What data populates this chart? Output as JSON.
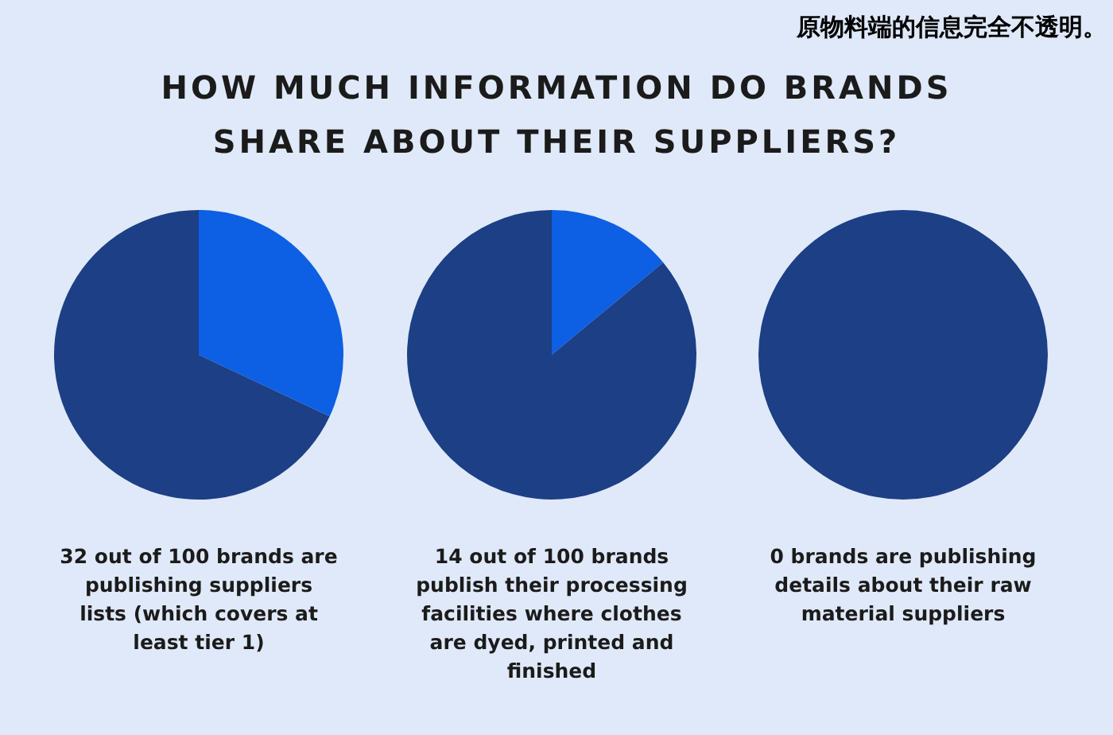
{
  "chart_data": [
    {
      "type": "pie",
      "title": "HOW MUCH INFORMATION DO BRANDS SHARE ABOUT THEIR SUPPLIERS?",
      "categories": [
        null,
        null
      ],
      "values": [
        32,
        68
      ],
      "colors": [
        "#0d5fe3",
        "#1c3f86"
      ],
      "annotations": [
        "32 out of 100 brands are publishing suppliers lists (which covers at least tier 1)",
        "原物料端的信息完全不透明。"
      ]
    },
    {
      "type": "pie",
      "categories": [
        null,
        null
      ],
      "values": [
        14,
        86
      ],
      "colors": [
        "#0d5fe3",
        "#1c3f86"
      ],
      "annotations": [
        "14 out of 100 brands publish their processing facilities where clothes are dyed, printed and finished"
      ]
    },
    {
      "type": "pie",
      "categories": [
        null,
        null
      ],
      "values": [
        0,
        100
      ],
      "colors": [
        "#0d5fe3",
        "#1c3f86"
      ],
      "annotations": [
        "0 brands are publishing details about their raw material suppliers"
      ]
    }
  ]
}
